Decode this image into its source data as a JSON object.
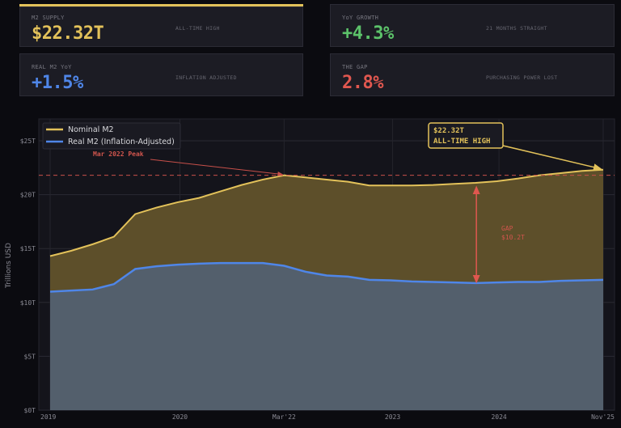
{
  "cards": [
    {
      "label": "M2 SUPPLY",
      "value": "$22.32T",
      "sub": "ALL-TIME HIGH",
      "color": "#e3c25a"
    },
    {
      "label": "YoY GROWTH",
      "value": "+4.3%",
      "sub": "21 MONTHS STRAIGHT",
      "color": "#5cc26a"
    },
    {
      "label": "REAL M2 YoY",
      "value": "+1.5%",
      "sub": "INFLATION ADJUSTED",
      "color": "#4f86e8"
    },
    {
      "label": "THE GAP",
      "value": "2.8%",
      "sub": "PURCHASING POWER LOST",
      "color": "#e0574f"
    }
  ],
  "chart_data": {
    "type": "area",
    "ylabel": "Trillions USD",
    "ylim": [
      0,
      25
    ],
    "yticks": [
      0,
      5,
      10,
      15,
      20,
      25
    ],
    "ytick_labels": [
      "$0T",
      "$5T",
      "$10T",
      "$15T",
      "$20T",
      "$25T"
    ],
    "xlim": [
      0,
      26
    ],
    "xticks": [
      0,
      6.1,
      11,
      16.1,
      21.1,
      26
    ],
    "xtick_labels": [
      "2019",
      "2020",
      "Mar'22",
      "2023",
      "2024",
      "Nov'25"
    ],
    "grid": true,
    "legend_position": "top-left",
    "series": [
      {
        "name": "Nominal M2",
        "color": "#e3c25a",
        "values": [
          14.3,
          14.8,
          15.4,
          16.1,
          18.2,
          18.8,
          19.3,
          19.7,
          20.3,
          20.9,
          21.4,
          21.8,
          21.6,
          21.4,
          21.2,
          20.85,
          20.85,
          20.85,
          20.9,
          21.0,
          21.1,
          21.25,
          21.5,
          21.8,
          22.0,
          22.2,
          22.32
        ]
      },
      {
        "name": "Real M2 (Inflation-Adjusted)",
        "color": "#4f86e8",
        "values": [
          11.0,
          11.1,
          11.2,
          11.7,
          13.1,
          13.35,
          13.5,
          13.6,
          13.65,
          13.65,
          13.65,
          13.4,
          12.85,
          12.5,
          12.4,
          12.1,
          12.05,
          11.95,
          11.9,
          11.85,
          11.8,
          11.85,
          11.9,
          11.9,
          12.0,
          12.05,
          12.1
        ]
      }
    ],
    "annotations": {
      "peak_line_value": 21.8,
      "peak_label": "Mar 2022 Peak",
      "peak_index": 11,
      "ath_line1": "$22.32T",
      "ath_line2": "ALL-TIME HIGH",
      "gap_index": 20,
      "gap_label1": "GAP",
      "gap_label2": "$10.2T"
    }
  }
}
